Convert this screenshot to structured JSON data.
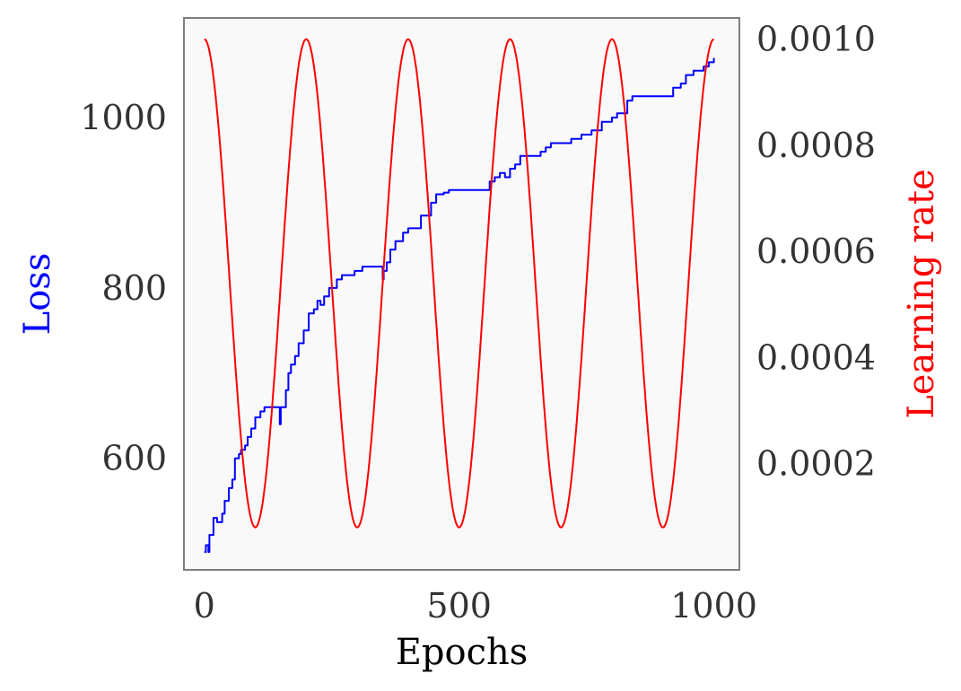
{
  "chart_data": {
    "type": "line",
    "xlabel": "Epochs",
    "ylabel_left": "Loss",
    "ylabel_right": "Learning rate",
    "x_ticks": [
      0,
      500,
      1000
    ],
    "x_tick_labels": [
      "0",
      "500",
      "1000"
    ],
    "xlim": [
      -40,
      1050
    ],
    "left_axis": {
      "ylim": [
        469,
        1117
      ],
      "ticks": [
        600,
        800,
        1000
      ],
      "tick_labels": [
        "600",
        "800",
        "1000"
      ]
    },
    "right_axis": {
      "ylim": [
        0.0,
        0.00104
      ],
      "ticks": [
        0.0002,
        0.0004,
        0.0006,
        0.0008,
        0.001
      ],
      "tick_labels": [
        "0.0002",
        "0.0004",
        "0.0006",
        "0.0008",
        "0.0010"
      ]
    },
    "series": [
      {
        "axis": "left",
        "color": "#0000ff",
        "x": [
          0,
          3,
          8,
          10,
          18,
          25,
          35,
          40,
          48,
          55,
          60,
          68,
          72,
          80,
          85,
          92,
          100,
          110,
          118,
          130,
          140,
          148,
          150,
          160,
          165,
          170,
          178,
          185,
          195,
          205,
          215,
          222,
          228,
          235,
          245,
          260,
          270,
          280,
          295,
          310,
          320,
          330,
          345,
          350,
          352,
          358,
          365,
          375,
          390,
          400,
          410,
          425,
          435,
          445,
          455,
          460,
          470,
          480,
          485,
          500,
          520,
          540,
          560,
          570,
          580,
          590,
          600,
          610,
          620,
          640,
          660,
          670,
          680,
          700,
          720,
          740,
          760,
          780,
          800,
          810,
          820,
          830,
          840,
          850,
          880,
          920,
          935,
          945,
          950,
          960,
          980,
          990,
          1000
        ],
        "y": [
          490,
          498,
          490,
          510,
          530,
          525,
          535,
          550,
          565,
          575,
          600,
          605,
          610,
          615,
          625,
          635,
          648,
          655,
          660,
          660,
          660,
          640,
          660,
          680,
          700,
          710,
          720,
          735,
          750,
          770,
          775,
          785,
          780,
          790,
          800,
          810,
          815,
          815,
          820,
          825,
          825,
          825,
          825,
          810,
          820,
          830,
          845,
          855,
          865,
          870,
          870,
          885,
          885,
          900,
          910,
          910,
          912,
          915,
          915,
          915,
          915,
          915,
          925,
          930,
          935,
          930,
          940,
          945,
          955,
          955,
          960,
          965,
          970,
          970,
          975,
          980,
          985,
          995,
          1000,
          1005,
          1005,
          1020,
          1025,
          1025,
          1025,
          1035,
          1040,
          1050,
          1050,
          1055,
          1060,
          1065,
          1070
        ]
      },
      {
        "axis": "right",
        "color": "#ff0000",
        "shape": "cosine",
        "period_epochs": 200,
        "lr_max": 0.001,
        "lr_min": 8e-05,
        "x_range": [
          0,
          1000
        ]
      }
    ],
    "grid": false,
    "background": "#f9f9f9",
    "frame_color": "#7f7f7f",
    "left_label_color": "#0000ff",
    "right_label_color": "#ff0000"
  }
}
